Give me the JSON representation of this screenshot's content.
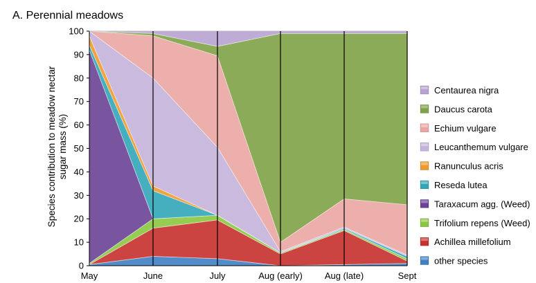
{
  "chart_data": {
    "type": "area",
    "stacked": true,
    "title": "A. Perennial meadows",
    "ylabel_lines": [
      "Species contribution to meadow  nectar",
      "sugar mass (%)"
    ],
    "xlabel": "",
    "categories": [
      "May",
      "June",
      "July",
      "Aug (early)",
      "Aug (late)",
      "Sept"
    ],
    "ylim": [
      0,
      100
    ],
    "yticks": [
      0,
      10,
      20,
      30,
      40,
      50,
      60,
      70,
      80,
      90,
      100
    ],
    "legend_position": "right",
    "series": [
      {
        "name": "other species",
        "color": "#3f7fc2",
        "values": [
          0.5,
          4,
          3,
          0,
          0.5,
          1
        ]
      },
      {
        "name": "Achillea millefolium",
        "color": "#c7302c",
        "values": [
          0,
          12,
          16.5,
          5,
          14.5,
          1
        ]
      },
      {
        "name": "Trifolium repens (Weed)",
        "color": "#8ac63f",
        "values": [
          0.5,
          4,
          2,
          0.5,
          0.5,
          1
        ]
      },
      {
        "name": "Taraxacum agg. (Weed)",
        "color": "#6a4396",
        "values": [
          91,
          0,
          0,
          0,
          0,
          0
        ]
      },
      {
        "name": "Reseda lutea",
        "color": "#31a6b8",
        "values": [
          2,
          12,
          0,
          0,
          0.5,
          1
        ]
      },
      {
        "name": "Ranunculus acris",
        "color": "#ef9a2c",
        "values": [
          4,
          2,
          0,
          0,
          0,
          0
        ]
      },
      {
        "name": "Leucanthemum vulgare",
        "color": "#c4b4da",
        "values": [
          2,
          46,
          29,
          0.5,
          0.5,
          0.5
        ]
      },
      {
        "name": "Echium vulgare",
        "color": "#eba6a3",
        "values": [
          0,
          18,
          39,
          4,
          12,
          21.5
        ]
      },
      {
        "name": "Daucus carota",
        "color": "#7fa247",
        "values": [
          0,
          1,
          4,
          89,
          70.5,
          73
        ]
      },
      {
        "name": "Centaurea nigra",
        "color": "#b7a3d3",
        "values": [
          0,
          1,
          6.5,
          1,
          1,
          1
        ]
      }
    ],
    "legend_order": [
      "Centaurea nigra",
      "Daucus carota",
      "Echium vulgare",
      "Leucanthemum vulgare",
      "Ranunculus acris",
      "Reseda lutea",
      "Taraxacum agg. (Weed)",
      "Trifolium repens (Weed)",
      "Achillea millefolium",
      "other species"
    ],
    "vertical_lines_at": [
      "June",
      "July",
      "Aug (early)",
      "Aug (late)",
      "Sept"
    ]
  }
}
